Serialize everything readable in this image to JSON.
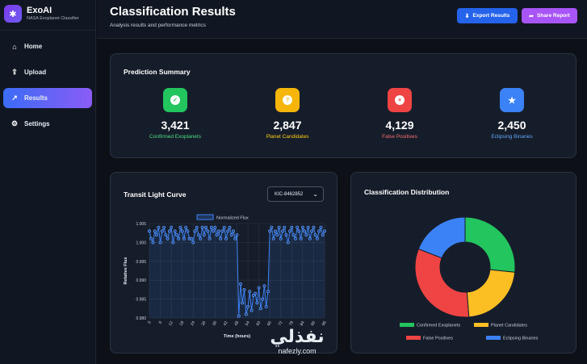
{
  "brand": {
    "name": "ExoAI",
    "subtitle": "NASA Exoplanet Classifier",
    "icon": "gear-icon"
  },
  "nav": [
    {
      "label": "Home",
      "icon": "home-icon",
      "active": false
    },
    {
      "label": "Upload",
      "icon": "upload-icon",
      "active": false
    },
    {
      "label": "Results",
      "icon": "chart-icon",
      "active": true
    },
    {
      "label": "Settings",
      "icon": "gear-icon",
      "active": false
    }
  ],
  "header": {
    "title": "Classification Results",
    "subtitle": "Analysis results and performance metrics",
    "export_label": "Export Results",
    "share_label": "Share Report"
  },
  "summary": {
    "title": "Prediction Summary",
    "stats": [
      {
        "value": "3,421",
        "label": "Confirmed Exoplanets",
        "color": "#22c55e",
        "label_color": "#4ade80",
        "icon": "check-icon"
      },
      {
        "value": "2,847",
        "label": "Planet Candidates",
        "color": "#f5b50b",
        "label_color": "#facc15",
        "icon": "question-icon"
      },
      {
        "value": "4,129",
        "label": "False Positives",
        "color": "#ef4444",
        "label_color": "#f87171",
        "icon": "x-icon"
      },
      {
        "value": "2,450",
        "label": "Eclipsing Binaries",
        "color": "#3b82f6",
        "label_color": "#60a5fa",
        "icon": "star-icon"
      }
    ]
  },
  "lightcurve": {
    "title": "Transit Light Curve",
    "selected_target": "KIC-8462852"
  },
  "distribution": {
    "title": "Classification Distribution"
  },
  "watermark": {
    "arabic": "نفذلي",
    "latin": "nafezly.com"
  },
  "chart_data": [
    {
      "type": "line",
      "legend": [
        "Normalized Flux"
      ],
      "legend_position": "top",
      "xlabel": "Time (hours)",
      "ylabel": "Relative Flux",
      "xlim": [
        0,
        96
      ],
      "ylim": [
        0.98,
        1.005
      ],
      "x_ticks": [
        0,
        6,
        12,
        18,
        24,
        30,
        36,
        42,
        48,
        54,
        60,
        66,
        72,
        78,
        84,
        90,
        96
      ],
      "y_ticks": [
        0.98,
        0.985,
        0.99,
        0.995,
        1.0,
        1.005
      ],
      "y_tick_labels": [
        "0.980",
        "0.985",
        "0.990",
        "0.995",
        "1.000",
        "1.005"
      ],
      "grid": true,
      "series": [
        {
          "name": "Normalized Flux",
          "color": "#3b82f6",
          "x": [
            0,
            1,
            2,
            3,
            4,
            5,
            6,
            7,
            8,
            9,
            10,
            11,
            12,
            13,
            14,
            15,
            16,
            17,
            18,
            19,
            20,
            21,
            22,
            23,
            24,
            25,
            26,
            27,
            28,
            29,
            30,
            31,
            32,
            33,
            34,
            35,
            36,
            37,
            38,
            39,
            40,
            41,
            42,
            43,
            44,
            45,
            46,
            47,
            48,
            49,
            50,
            51,
            52,
            53,
            54,
            55,
            56,
            57,
            58,
            59,
            60,
            61,
            62,
            63,
            64,
            65,
            66,
            67,
            68,
            69,
            70,
            71,
            72,
            73,
            74,
            75,
            76,
            77,
            78,
            79,
            80,
            81,
            82,
            83,
            84,
            85,
            86,
            87,
            88,
            89,
            90,
            91,
            92,
            93,
            94,
            95,
            96
          ],
          "y": [
            1.003,
            1.001,
            1.0,
            1.003,
            1.002,
            1.004,
            1.0,
            1.003,
            1.004,
            1.002,
            1.001,
            1.003,
            1.004,
            1.0,
            1.003,
            1.002,
            1.001,
            1.004,
            1.003,
            1.001,
            1.004,
            1.003,
            1.001,
            1.001,
            1.0,
            1.003,
            1.004,
            1.002,
            1.001,
            1.004,
            1.002,
            1.004,
            1.003,
            1.001,
            1.004,
            1.003,
            1.004,
            1.002,
            1.003,
            1.001,
            1.003,
            1.004,
            1.001,
            1.003,
            1.004,
            1.002,
            1.003,
            1.001,
            1.002,
            0.9805,
            0.989,
            0.984,
            0.9875,
            0.981,
            0.983,
            0.987,
            0.982,
            0.986,
            0.9865,
            0.984,
            0.988,
            0.9825,
            0.985,
            0.9885,
            0.983,
            0.987,
            1.003,
            1.004,
            1.001,
            1.003,
            1.002,
            1.004,
            1.001,
            1.003,
            1.004,
            1.002,
            1.0,
            1.003,
            1.004,
            1.002,
            1.001,
            1.004,
            1.003,
            1.001,
            1.004,
            1.003,
            1.002,
            1.004,
            1.001,
            1.003,
            1.004,
            1.002,
            1.001,
            1.003,
            1.004,
            1.002,
            1.003
          ]
        }
      ]
    },
    {
      "type": "pie",
      "title": "Classification Distribution",
      "legend_position": "bottom",
      "categories": [
        "Confirmed Exoplanets",
        "Planet Candidates",
        "False Positives",
        "Eclipsing Binaries"
      ],
      "values": [
        3421,
        2847,
        4129,
        2450
      ],
      "colors": [
        "#22c55e",
        "#fbbf24",
        "#ef4444",
        "#3b82f6"
      ]
    }
  ]
}
